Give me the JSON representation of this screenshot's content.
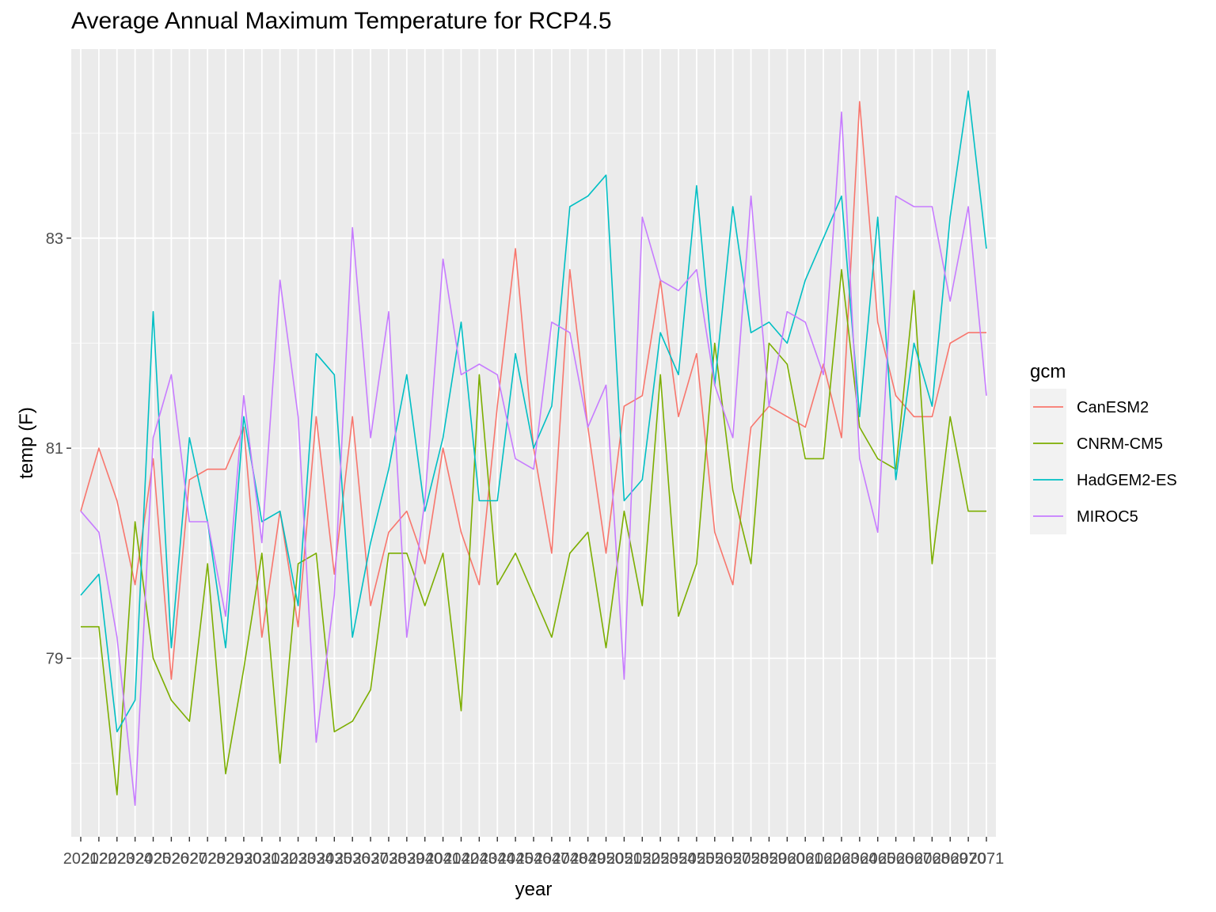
{
  "chart_data": {
    "type": "line",
    "title": "Average Annual Maximum Temperature for RCP4.5",
    "xlabel": "year",
    "ylabel": "temp (F)",
    "x_tick_labels": [
      "2021",
      "2022",
      "2023",
      "2024",
      "2025",
      "2026",
      "2027",
      "2028",
      "2029",
      "2030",
      "2031",
      "2032",
      "2033",
      "2034",
      "2035",
      "2036",
      "2037",
      "2038",
      "2039",
      "2040",
      "2041",
      "2042",
      "2043",
      "2044",
      "2045",
      "2046",
      "2047",
      "2048",
      "2049",
      "2050",
      "2051",
      "2052",
      "2053",
      "2054",
      "2055",
      "2056",
      "2057",
      "2058",
      "2059",
      "2060",
      "2061",
      "2062",
      "2063",
      "2064",
      "2065",
      "2066",
      "2067",
      "2068",
      "2069",
      "2070",
      "2071"
    ],
    "y_ticks": [
      79,
      81,
      83
    ],
    "ylim": [
      77.3,
      84.8
    ],
    "grid": true,
    "legend": {
      "title": "gcm",
      "position": "right"
    },
    "series": [
      {
        "name": "CanESM2",
        "color": "#F8766D",
        "values": [
          80.4,
          81.0,
          80.5,
          79.7,
          80.9,
          78.8,
          80.7,
          80.8,
          80.8,
          81.2,
          79.2,
          80.4,
          79.3,
          81.3,
          79.8,
          81.3,
          79.5,
          80.2,
          80.4,
          79.9,
          81.0,
          80.2,
          79.7,
          81.4,
          82.9,
          81.0,
          80.0,
          82.7,
          81.2,
          80.0,
          81.4,
          81.5,
          82.6,
          81.3,
          81.9,
          80.2,
          79.7,
          81.2,
          81.4,
          81.3,
          81.2,
          81.8,
          81.1,
          84.3,
          82.2,
          81.5,
          81.3,
          81.3,
          82.0,
          82.1,
          82.1
        ]
      },
      {
        "name": "CNRM-CM5",
        "color": "#7CAE00",
        "values": [
          79.3,
          79.3,
          77.7,
          80.3,
          79.0,
          78.6,
          78.4,
          79.9,
          77.9,
          78.9,
          80.0,
          78.0,
          79.9,
          80.0,
          78.3,
          78.4,
          78.7,
          80.0,
          80.0,
          79.5,
          80.0,
          78.5,
          81.7,
          79.7,
          80.0,
          79.6,
          79.2,
          80.0,
          80.2,
          79.1,
          80.4,
          79.5,
          81.7,
          79.4,
          79.9,
          82.0,
          80.6,
          79.9,
          82.0,
          81.8,
          80.9,
          80.9,
          82.7,
          81.2,
          80.9,
          80.8,
          82.5,
          79.9,
          81.3,
          80.4,
          80.4
        ]
      },
      {
        "name": "HadGEM2-ES",
        "color": "#00BFC4",
        "values": [
          79.6,
          79.8,
          78.3,
          78.6,
          82.3,
          79.1,
          81.1,
          80.3,
          79.1,
          81.3,
          80.3,
          80.4,
          79.5,
          81.9,
          81.7,
          79.2,
          80.1,
          80.8,
          81.7,
          80.4,
          81.1,
          82.2,
          80.5,
          80.5,
          81.9,
          81.0,
          81.4,
          83.3,
          83.4,
          83.6,
          80.5,
          80.7,
          82.1,
          81.7,
          83.5,
          81.6,
          83.3,
          82.1,
          82.2,
          82.0,
          82.6,
          83.0,
          83.4,
          81.3,
          83.2,
          80.7,
          82.0,
          81.4,
          83.2,
          84.4,
          82.9
        ]
      },
      {
        "name": "MIROC5",
        "color": "#C77CFF",
        "values": [
          80.4,
          80.2,
          79.2,
          77.6,
          81.1,
          81.7,
          80.3,
          80.3,
          79.4,
          81.5,
          80.1,
          82.6,
          81.3,
          78.2,
          79.6,
          83.1,
          81.1,
          82.3,
          79.2,
          80.5,
          82.8,
          81.7,
          81.8,
          81.7,
          80.9,
          80.8,
          82.2,
          82.1,
          81.2,
          81.6,
          78.8,
          83.2,
          82.6,
          82.5,
          82.7,
          81.6,
          81.1,
          83.4,
          81.4,
          82.3,
          82.2,
          81.7,
          84.2,
          80.9,
          80.2,
          83.4,
          83.3,
          83.3,
          82.4,
          83.3,
          81.5
        ]
      }
    ]
  }
}
